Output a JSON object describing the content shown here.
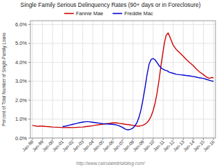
{
  "chart_data": {
    "type": "line",
    "title": "Single Family Serious Delinquency Rates (90+ days or in Foreclosure)",
    "y_label": "Percent of Total Number of Single-Family Loans",
    "annotations": [
      "http://www.calculatedriskblog.com/"
    ],
    "xlim": [
      -0.2,
      18.2
    ],
    "xticks": [
      {
        "value": 0,
        "label": "Jan-98"
      },
      {
        "value": 1,
        "label": "Jan-99"
      },
      {
        "value": 2,
        "label": "Jan-00"
      },
      {
        "value": 3,
        "label": "Jan-01"
      },
      {
        "value": 4,
        "label": "Jan-02"
      },
      {
        "value": 5,
        "label": "Jan-03"
      },
      {
        "value": 6,
        "label": "Jan-04"
      },
      {
        "value": 7,
        "label": "Jan-05"
      },
      {
        "value": 8,
        "label": "Jan-06"
      },
      {
        "value": 9,
        "label": "Jan-07"
      },
      {
        "value": 10,
        "label": "Jan-08"
      },
      {
        "value": 11,
        "label": "Jan-09"
      },
      {
        "value": 12,
        "label": "Jan-10"
      },
      {
        "value": 13,
        "label": "Jan-11"
      },
      {
        "value": 14,
        "label": "Jan-12"
      },
      {
        "value": 15,
        "label": "Jan-13"
      },
      {
        "value": 16,
        "label": "Jan-14"
      },
      {
        "value": 17,
        "label": "Jan-15"
      },
      {
        "value": 18,
        "label": "Jan-16"
      }
    ],
    "ylim": [
      0.0,
      0.062
    ],
    "yticks": [
      {
        "value": 0.0,
        "label": "0.0%"
      },
      {
        "value": 0.01,
        "label": "1.0%"
      },
      {
        "value": 0.02,
        "label": "2.0%"
      },
      {
        "value": 0.03,
        "label": "3.0%"
      },
      {
        "value": 0.04,
        "label": "4.0%"
      },
      {
        "value": 0.05,
        "label": "5.0%"
      },
      {
        "value": 0.06,
        "label": "6.0%"
      }
    ],
    "grid": true,
    "legend": "top",
    "series": [
      {
        "name": "Fannie Mae",
        "color": "#cc0000",
        "x": [
          0.0,
          0.2,
          0.4,
          0.6,
          0.8,
          1.0,
          1.3,
          1.6,
          2.0,
          2.4,
          2.8,
          3.0,
          3.3,
          3.6,
          4.0,
          4.3,
          4.6,
          5.0,
          5.3,
          5.6,
          6.0,
          6.3,
          6.6,
          7.0,
          7.3,
          7.6,
          8.0,
          8.3,
          8.6,
          9.0,
          9.3,
          9.6,
          10.0,
          10.2,
          10.4,
          10.6,
          10.8,
          11.0,
          11.2,
          11.4,
          11.6,
          11.8,
          12.0,
          12.2,
          12.4,
          12.6,
          12.8,
          13.0,
          13.15,
          13.3,
          13.5,
          13.7,
          14.0,
          14.3,
          14.6,
          15.0,
          15.3,
          15.6,
          16.0,
          16.3,
          16.6,
          17.0,
          17.3,
          17.6,
          17.8,
          18.0
        ],
        "values": [
          0.0067,
          0.0065,
          0.0063,
          0.0062,
          0.0063,
          0.0063,
          0.0061,
          0.006,
          0.0058,
          0.0057,
          0.0056,
          0.0055,
          0.0055,
          0.0056,
          0.0055,
          0.0056,
          0.0057,
          0.0058,
          0.006,
          0.0062,
          0.0065,
          0.0068,
          0.007,
          0.0073,
          0.0075,
          0.0077,
          0.008,
          0.008,
          0.0078,
          0.0075,
          0.0072,
          0.007,
          0.0067,
          0.0065,
          0.0063,
          0.0063,
          0.0065,
          0.0068,
          0.0073,
          0.0082,
          0.0095,
          0.0115,
          0.0145,
          0.0185,
          0.024,
          0.031,
          0.039,
          0.046,
          0.051,
          0.0543,
          0.0555,
          0.053,
          0.049,
          0.0468,
          0.0453,
          0.0432,
          0.0415,
          0.04,
          0.0382,
          0.0365,
          0.035,
          0.0335,
          0.0322,
          0.0315,
          0.032,
          0.0318
        ]
      },
      {
        "name": "Freddie Mac",
        "color": "#0000cc",
        "x": [
          3.0,
          3.3,
          3.6,
          4.0,
          4.3,
          4.6,
          5.0,
          5.3,
          5.6,
          6.0,
          6.3,
          6.6,
          7.0,
          7.3,
          7.6,
          8.0,
          8.3,
          8.6,
          9.0,
          9.2,
          9.4,
          9.6,
          9.8,
          10.0,
          10.2,
          10.4,
          10.6,
          10.8,
          11.0,
          11.2,
          11.4,
          11.6,
          11.8,
          12.0,
          12.2,
          12.4,
          12.6,
          12.8,
          13.0,
          13.2,
          13.4,
          13.6,
          14.0,
          14.3,
          14.6,
          15.0,
          15.3,
          15.6,
          16.0,
          16.3,
          16.6,
          17.0,
          17.3,
          17.6,
          17.8,
          18.0
        ],
        "values": [
          0.006,
          0.0063,
          0.0067,
          0.0072,
          0.0076,
          0.008,
          0.0084,
          0.0086,
          0.0086,
          0.0083,
          0.0081,
          0.0079,
          0.0076,
          0.0075,
          0.0074,
          0.0072,
          0.007,
          0.0065,
          0.0055,
          0.0048,
          0.0044,
          0.0044,
          0.0047,
          0.0053,
          0.0065,
          0.0082,
          0.011,
          0.015,
          0.0205,
          0.0268,
          0.0335,
          0.039,
          0.0415,
          0.042,
          0.0413,
          0.0398,
          0.0382,
          0.037,
          0.0363,
          0.0358,
          0.0355,
          0.0348,
          0.0342,
          0.0337,
          0.0335,
          0.0333,
          0.033,
          0.0328,
          0.0325,
          0.0322,
          0.0318,
          0.0315,
          0.031,
          0.0305,
          0.0302,
          0.03
        ]
      }
    ]
  }
}
